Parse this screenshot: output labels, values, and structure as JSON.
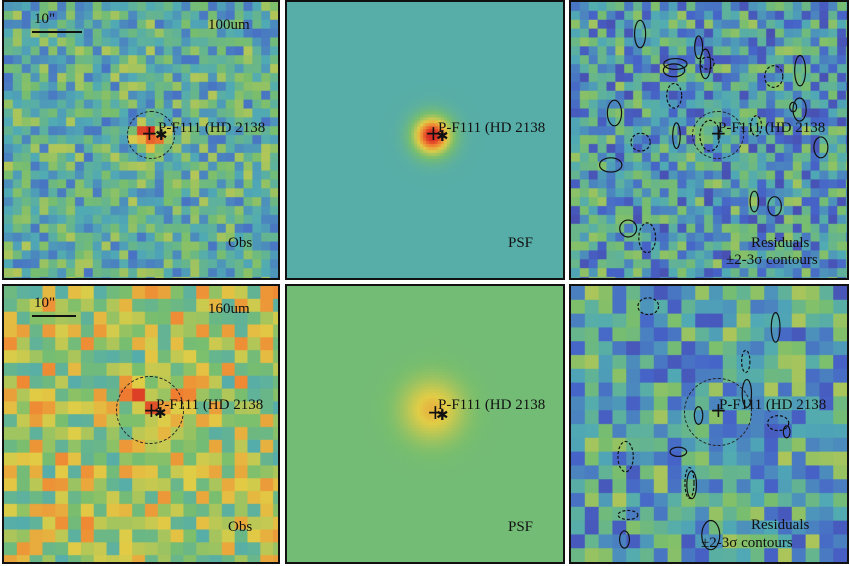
{
  "source_name": "P-F111 (HD 2138",
  "rows": [
    {
      "band": "100um",
      "scale_label": "10\"",
      "panels": [
        {
          "id": "obs",
          "label": "Obs"
        },
        {
          "id": "psf",
          "label": "PSF"
        },
        {
          "id": "res",
          "label": "Residuals",
          "sublabel": "±2-3σ contours"
        }
      ]
    },
    {
      "band": "160um",
      "scale_label": "10\"",
      "panels": [
        {
          "id": "obs",
          "label": "Obs"
        },
        {
          "id": "psf",
          "label": "PSF"
        },
        {
          "id": "res",
          "label": "Residuals",
          "sublabel": "±2-3σ contours"
        }
      ]
    }
  ],
  "colors": {
    "background_teal": "#5fae9c",
    "background_green": "#86bf6a",
    "peak_red": "#e0452b",
    "low_purple": "#5b2a86",
    "border": "#111111"
  },
  "markers": {
    "source_position": "plus-marker",
    "catalog_position": "asterisk-marker"
  }
}
